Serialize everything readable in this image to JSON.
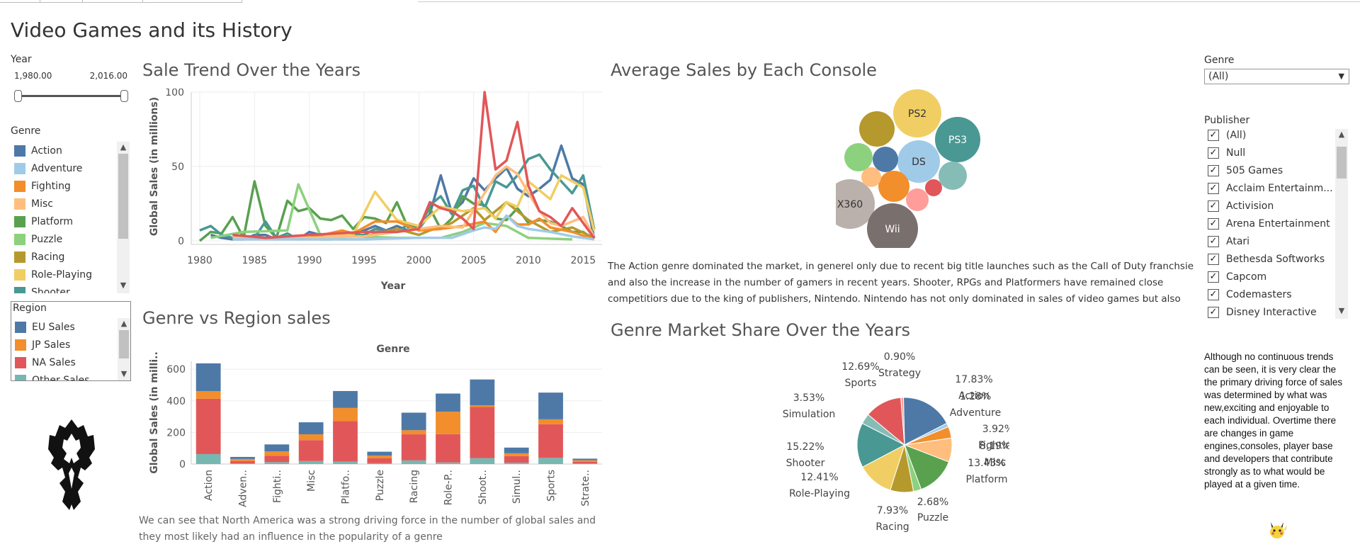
{
  "dashboard": {
    "title": "Video Games and its History"
  },
  "year_filter": {
    "label": "Year",
    "min": "1,980.00",
    "max": "2,016.00"
  },
  "genre_legend": {
    "title": "Genre",
    "items": [
      {
        "label": "Action",
        "color": "#4e79a7"
      },
      {
        "label": "Adventure",
        "color": "#a0cbe8"
      },
      {
        "label": "Fighting",
        "color": "#f28e2b"
      },
      {
        "label": "Misc",
        "color": "#ffbe7d"
      },
      {
        "label": "Platform",
        "color": "#59a14f"
      },
      {
        "label": "Puzzle",
        "color": "#8cd17d"
      },
      {
        "label": "Racing",
        "color": "#b6992d"
      },
      {
        "label": "Role-Playing",
        "color": "#f1ce63"
      },
      {
        "label": "Shooter",
        "color": "#499894"
      }
    ]
  },
  "region_legend": {
    "title": "Region",
    "items": [
      {
        "label": "EU Sales",
        "color": "#4e79a7"
      },
      {
        "label": "JP Sales",
        "color": "#f28e2b"
      },
      {
        "label": "NA Sales",
        "color": "#e15759"
      },
      {
        "label": "Other Sales",
        "color": "#76b7b2"
      }
    ]
  },
  "genre_filter": {
    "label": "Genre",
    "value": "(All)"
  },
  "publisher_filter": {
    "label": "Publisher",
    "items": [
      "(All)",
      "Null",
      "505 Games",
      "Acclaim Entertainm...",
      "Activision",
      "Arena Entertainment",
      "Atari",
      "Bethesda Softworks",
      "Capcom",
      "Codemasters",
      "Disney Interactive"
    ]
  },
  "sale_trend": {
    "title": "Sale Trend Over the Years",
    "chart_data": {
      "type": "line",
      "xlabel": "Year",
      "ylabel": "Global Sales (in millions)",
      "xlim": [
        1980,
        2016
      ],
      "ylim": [
        0,
        100
      ],
      "x_ticks": [
        1980,
        1985,
        1990,
        1995,
        2000,
        2005,
        2010,
        2015
      ],
      "y_ticks": [
        0,
        50,
        100
      ],
      "series": [
        {
          "name": "Action",
          "color": "#4e79a7",
          "x": [
            1981,
            1982,
            1983,
            1984,
            1985,
            1986,
            1987,
            1988,
            1989,
            1990,
            1991,
            1992,
            1993,
            1994,
            1995,
            1996,
            1997,
            1998,
            1999,
            2000,
            2001,
            2002,
            2003,
            2004,
            2005,
            2006,
            2007,
            2008,
            2009,
            2010,
            2011,
            2012,
            2013,
            2014,
            2015,
            2016
          ],
          "values": [
            4,
            2,
            1,
            1,
            4,
            4,
            1,
            2,
            1,
            6,
            4,
            2,
            3,
            4,
            7,
            10,
            7,
            10,
            7,
            8,
            18,
            44,
            19,
            26,
            42,
            34,
            42,
            49,
            35,
            30,
            35,
            41,
            64,
            42,
            38,
            2
          ]
        },
        {
          "name": "Platform",
          "color": "#59a14f",
          "x": [
            1980,
            1981,
            1982,
            1983,
            1984,
            1985,
            1986,
            1987,
            1988,
            1989,
            1990,
            1991,
            1992,
            1993,
            1994,
            1995,
            1996,
            1997,
            1998,
            1999,
            2000,
            2001,
            2002,
            2003,
            2004,
            2005,
            2006,
            2007,
            2008,
            2009,
            2010,
            2011,
            2012,
            2013,
            2014,
            2015,
            2016
          ],
          "values": [
            0,
            6,
            5,
            16,
            2,
            40,
            10,
            2,
            27,
            20,
            22,
            15,
            14,
            17,
            8,
            16,
            15,
            12,
            26,
            9,
            10,
            22,
            8,
            15,
            30,
            25,
            24,
            15,
            14,
            22,
            12,
            14,
            13,
            10,
            6,
            6,
            1
          ]
        },
        {
          "name": "Shooter",
          "color": "#499894",
          "x": [
            1980,
            1981,
            1982,
            1983,
            1984,
            1985,
            1986,
            1987,
            1988,
            1989,
            1990,
            1991,
            1992,
            1993,
            1994,
            1995,
            1996,
            1997,
            1998,
            1999,
            2000,
            2001,
            2002,
            2003,
            2004,
            2005,
            2006,
            2007,
            2008,
            2009,
            2010,
            2011,
            2012,
            2013,
            2014,
            2015,
            2016
          ],
          "values": [
            7,
            10,
            4,
            2,
            3,
            2,
            13,
            2,
            5,
            1,
            2,
            1,
            1,
            2,
            4,
            4,
            8,
            7,
            6,
            11,
            7,
            24,
            30,
            18,
            34,
            37,
            22,
            40,
            36,
            44,
            55,
            58,
            48,
            40,
            32,
            44,
            8
          ]
        },
        {
          "name": "Racing",
          "color": "#b6992d",
          "x": [
            1990,
            1992,
            1995,
            1998,
            2000,
            2001,
            2003,
            2005,
            2006,
            2008,
            2010,
            2012,
            2014,
            2016
          ],
          "values": [
            2,
            4,
            3,
            8,
            4,
            7,
            12,
            22,
            14,
            26,
            14,
            6,
            9,
            2
          ]
        },
        {
          "name": "Puzzle",
          "color": "#8cd17d",
          "x": [
            1981,
            1984,
            1988,
            1989,
            1991,
            1994,
            1998,
            2002,
            2004,
            2006,
            2008,
            2010,
            2014
          ],
          "values": [
            2,
            6,
            7,
            38,
            4,
            3,
            2,
            2,
            6,
            12,
            10,
            2,
            1
          ]
        },
        {
          "name": "Role-Playing",
          "color": "#f1ce63",
          "x": [
            1986,
            1989,
            1994,
            1996,
            1998,
            2000,
            2002,
            2004,
            2006,
            2007,
            2008,
            2009,
            2010,
            2012,
            2013,
            2015,
            2016
          ],
          "values": [
            2,
            3,
            4,
            33,
            14,
            10,
            23,
            20,
            22,
            15,
            26,
            23,
            40,
            28,
            44,
            36,
            7
          ]
        },
        {
          "name": "Fighting",
          "color": "#f28e2b",
          "x": [
            1987,
            1990,
            1993,
            1994,
            1996,
            1998,
            2000,
            2002,
            2004,
            2006,
            2007,
            2008,
            2009,
            2010,
            2011,
            2012,
            2014,
            2016
          ],
          "values": [
            1,
            2,
            7,
            5,
            13,
            13,
            7,
            8,
            10,
            13,
            6,
            17,
            11,
            11,
            15,
            9,
            6,
            1
          ]
        },
        {
          "name": "Misc",
          "color": "#ffbe7d",
          "x": [
            1983,
            1990,
            1995,
            1999,
            2002,
            2004,
            2006,
            2007,
            2008,
            2009,
            2010,
            2011,
            2012,
            2013,
            2015,
            2016
          ],
          "values": [
            2,
            2,
            3,
            7,
            10,
            9,
            32,
            44,
            50,
            45,
            32,
            20,
            12,
            10,
            16,
            3
          ]
        },
        {
          "name": "Adventure",
          "color": "#a0cbe8",
          "x": [
            1983,
            1990,
            1995,
            2000,
            2003,
            2005,
            2006,
            2007,
            2008,
            2009,
            2010,
            2012,
            2014,
            2016
          ],
          "values": [
            1,
            1,
            1,
            2,
            2,
            7,
            9,
            8,
            17,
            10,
            8,
            6,
            3,
            1
          ]
        },
        {
          "name": "Sports",
          "color": "#e15759",
          "x": [
            1983,
            1986,
            1990,
            1995,
            1998,
            2000,
            2001,
            2002,
            2003,
            2004,
            2005,
            2006,
            2007,
            2008,
            2009,
            2010,
            2011,
            2012,
            2013,
            2014,
            2015,
            2016
          ],
          "values": [
            4,
            2,
            4,
            6,
            6,
            8,
            26,
            22,
            20,
            15,
            8,
            100,
            48,
            54,
            80,
            37,
            20,
            16,
            10,
            22,
            12,
            2
          ]
        }
      ]
    }
  },
  "genre_region": {
    "title": "Genre vs Region sales",
    "chart_data": {
      "type": "bar",
      "stacked": true,
      "title": "Genre",
      "ylabel": "Global Sales (in milli..",
      "ylim": [
        0,
        650
      ],
      "y_ticks": [
        0,
        200,
        400,
        600
      ],
      "categories": [
        "Action",
        "Adven..",
        "Fighti..",
        "Misc",
        "Platfo..",
        "Puzzle",
        "Racing",
        "Role-P..",
        "Shoot..",
        "Simul..",
        "Sports",
        "Strate.."
      ],
      "series": [
        {
          "name": "Other Sales",
          "color": "#76b7b2",
          "values": [
            63,
            4,
            12,
            19,
            16,
            5,
            23,
            10,
            37,
            9,
            39,
            3
          ]
        },
        {
          "name": "NA Sales",
          "color": "#e15759",
          "values": [
            350,
            15,
            41,
            132,
            255,
            31,
            165,
            179,
            324,
            41,
            213,
            11
          ]
        },
        {
          "name": "JP Sales",
          "color": "#f28e2b",
          "values": [
            48,
            13,
            27,
            37,
            84,
            17,
            26,
            142,
            10,
            18,
            31,
            10
          ]
        },
        {
          "name": "EU Sales",
          "color": "#4e79a7",
          "values": [
            176,
            13,
            44,
            76,
            107,
            25,
            111,
            115,
            164,
            36,
            169,
            10
          ]
        }
      ]
    }
  },
  "avg_console": {
    "title": "Average Sales by Each Console",
    "chart_data": {
      "type": "bubble",
      "bubbles": [
        {
          "label": "PS2",
          "color": "#f1ce63",
          "size": 34
        },
        {
          "label": "PS3",
          "color": "#499894",
          "size": 32
        },
        {
          "label": "DS",
          "color": "#a0cbe8",
          "size": 30
        },
        {
          "label": "X360",
          "color": "#bab0ac",
          "size": 35
        },
        {
          "label": "Wii",
          "color": "#79706e",
          "size": 36
        },
        {
          "label": "",
          "color": "#b6992d",
          "size": 25
        },
        {
          "label": "",
          "color": "#8cd17d",
          "size": 20
        },
        {
          "label": "",
          "color": "#4e79a7",
          "size": 18
        },
        {
          "label": "",
          "color": "#f28e2b",
          "size": 22
        },
        {
          "label": "",
          "color": "#ffbe7d",
          "size": 14
        },
        {
          "label": "",
          "color": "#ff9d9a",
          "size": 16
        },
        {
          "label": "",
          "color": "#e15759",
          "size": 12
        },
        {
          "label": "",
          "color": "#86bcb6",
          "size": 20
        }
      ]
    },
    "note": "The Action genre dominated the market, in generel only due to recent big title launches such as the Call of Duty franchsie and also the increase in the number of gamers in recent years. Shooter, RPGs and Platformers have remained close competitiors due to the king of publishers, Nintendo. Nintendo has not only dominated in sales of video games but also had a huge influence in"
  },
  "market_share": {
    "title": "Genre Market Share Over the Years",
    "chart_data": {
      "type": "pie",
      "slices": [
        {
          "name": "Action",
          "value": 17.83,
          "label": "17.83%",
          "color": "#4e79a7"
        },
        {
          "name": "Adventure",
          "value": 1.28,
          "label": "1.28%",
          "color": "#a0cbe8"
        },
        {
          "name": "Fighting",
          "value": 3.92,
          "label": "3.92%",
          "color": "#f28e2b"
        },
        {
          "name": "Misc",
          "value": 8.19,
          "label": "8.19%",
          "color": "#ffbe7d"
        },
        {
          "name": "Platform",
          "value": 13.43,
          "label": "13.43%",
          "color": "#59a14f"
        },
        {
          "name": "Puzzle",
          "value": 2.68,
          "label": "2.68%",
          "color": "#8cd17d"
        },
        {
          "name": "Racing",
          "value": 7.93,
          "label": "7.93%",
          "color": "#b6992d"
        },
        {
          "name": "Role-Playing",
          "value": 12.41,
          "label": "12.41%",
          "color": "#f1ce63"
        },
        {
          "name": "Shooter",
          "value": 15.22,
          "label": "15.22%",
          "color": "#499894"
        },
        {
          "name": "Simulation",
          "value": 3.53,
          "label": "3.53%",
          "color": "#86bcb6"
        },
        {
          "name": "Sports",
          "value": 12.69,
          "label": "12.69%",
          "color": "#e15759"
        },
        {
          "name": "Strategy",
          "value": 0.9,
          "label": "0.90%",
          "color": "#ff9d9a"
        }
      ]
    }
  },
  "bottom_note": {
    "line1": "We can see that North America was a strong driving force in the number of global sales and",
    "line2": "they most likely had an influence in the popularity of a genre"
  },
  "side_note": "Although no continuous trends can be seen, it is very clear the the primary driving force of sales was determined by what was new,exciting and enjoyable to each individual. Overtime there are changes in game engines,consoles, player base and developers that contribute strongly as to what would be played at a given time."
}
